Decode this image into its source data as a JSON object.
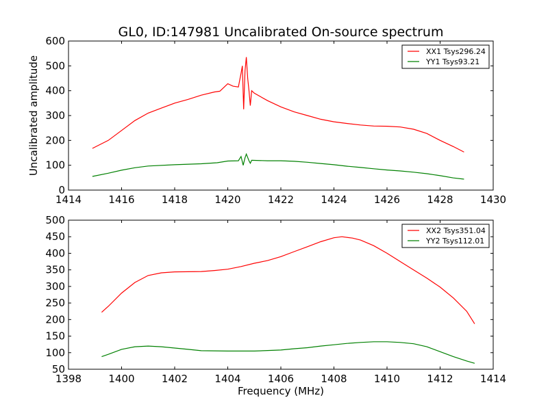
{
  "chart_data": [
    {
      "type": "line",
      "title": "GL0, ID:147981 Uncalibrated On-source spectrum",
      "xlabel": "",
      "ylabel": "Uncalibrated amplitude",
      "xlim": [
        1414,
        1430
      ],
      "ylim": [
        0,
        600
      ],
      "xticks": [
        1414,
        1416,
        1418,
        1420,
        1422,
        1424,
        1426,
        1428,
        1430
      ],
      "yticks": [
        0,
        100,
        200,
        300,
        400,
        500,
        600
      ],
      "legend_position": "top-right",
      "series": [
        {
          "name": "XX1 Tsys296.24",
          "color": "#ff0000",
          "x": [
            1414.9,
            1415.5,
            1416,
            1416.5,
            1417,
            1417.5,
            1418,
            1418.5,
            1419,
            1419.5,
            1419.7,
            1420,
            1420.2,
            1420.4,
            1420.5,
            1420.55,
            1420.6,
            1420.65,
            1420.7,
            1420.75,
            1420.8,
            1420.85,
            1420.9,
            1421,
            1421.5,
            1422,
            1422.5,
            1423,
            1423.5,
            1424,
            1424.5,
            1425,
            1425.5,
            1426,
            1426.5,
            1427,
            1427.5,
            1428,
            1428.5,
            1428.9
          ],
          "y": [
            168,
            200,
            240,
            280,
            310,
            330,
            350,
            365,
            382,
            395,
            398,
            428,
            418,
            415,
            470,
            500,
            325,
            480,
            535,
            450,
            400,
            340,
            400,
            390,
            360,
            335,
            315,
            300,
            285,
            275,
            268,
            262,
            258,
            257,
            254,
            245,
            228,
            200,
            175,
            153
          ]
        },
        {
          "name": "YY1 Tsys93.21",
          "color": "#008000",
          "x": [
            1414.9,
            1415.5,
            1416,
            1416.5,
            1417,
            1418,
            1419,
            1419.6,
            1420,
            1420.4,
            1420.5,
            1420.58,
            1420.65,
            1420.7,
            1420.8,
            1420.85,
            1420.9,
            1421.5,
            1422,
            1422.5,
            1423,
            1423.5,
            1424,
            1424.5,
            1425,
            1425.5,
            1426,
            1426.5,
            1427,
            1427.5,
            1428,
            1428.5,
            1428.9
          ],
          "y": [
            55,
            68,
            80,
            90,
            97,
            102,
            106,
            110,
            117,
            118,
            135,
            100,
            130,
            145,
            118,
            108,
            120,
            118,
            118,
            116,
            112,
            107,
            102,
            96,
            91,
            86,
            81,
            77,
            72,
            66,
            58,
            49,
            44
          ]
        }
      ]
    },
    {
      "type": "line",
      "title": "",
      "xlabel": "Frequency (MHz)",
      "ylabel": "",
      "xlim": [
        1398,
        1414
      ],
      "ylim": [
        50,
        500
      ],
      "xticks": [
        1398,
        1400,
        1402,
        1404,
        1406,
        1408,
        1410,
        1412,
        1414
      ],
      "yticks": [
        50,
        100,
        150,
        200,
        250,
        300,
        350,
        400,
        450,
        500
      ],
      "legend_position": "top-right",
      "series": [
        {
          "name": "XX2 Tsys351.04",
          "color": "#ff0000",
          "x": [
            1399.25,
            1399.5,
            1400,
            1400.5,
            1401,
            1401.5,
            1402,
            1403,
            1403.5,
            1404,
            1404.5,
            1405,
            1405.5,
            1406,
            1406.5,
            1407,
            1407.5,
            1408,
            1408.3,
            1408.7,
            1409,
            1409.5,
            1410,
            1410.5,
            1411,
            1411.5,
            1412,
            1412.5,
            1413,
            1413.3
          ],
          "y": [
            222,
            240,
            280,
            312,
            333,
            341,
            344,
            345,
            348,
            352,
            360,
            370,
            378,
            390,
            405,
            420,
            435,
            447,
            450,
            446,
            440,
            423,
            400,
            375,
            350,
            325,
            298,
            265,
            225,
            187
          ]
        },
        {
          "name": "YY2 Tsys112.01",
          "color": "#008000",
          "x": [
            1399.25,
            1399.5,
            1400,
            1400.5,
            1401,
            1401.5,
            1402,
            1402.5,
            1403,
            1404,
            1405,
            1406,
            1406.5,
            1407,
            1407.5,
            1408,
            1408.5,
            1409,
            1409.5,
            1410,
            1410.5,
            1411,
            1411.5,
            1412,
            1412.5,
            1413,
            1413.3
          ],
          "y": [
            88,
            95,
            110,
            118,
            120,
            118,
            114,
            110,
            106,
            105,
            105,
            108,
            112,
            115,
            120,
            124,
            128,
            131,
            133,
            133,
            131,
            127,
            118,
            103,
            88,
            75,
            68
          ]
        }
      ]
    }
  ]
}
